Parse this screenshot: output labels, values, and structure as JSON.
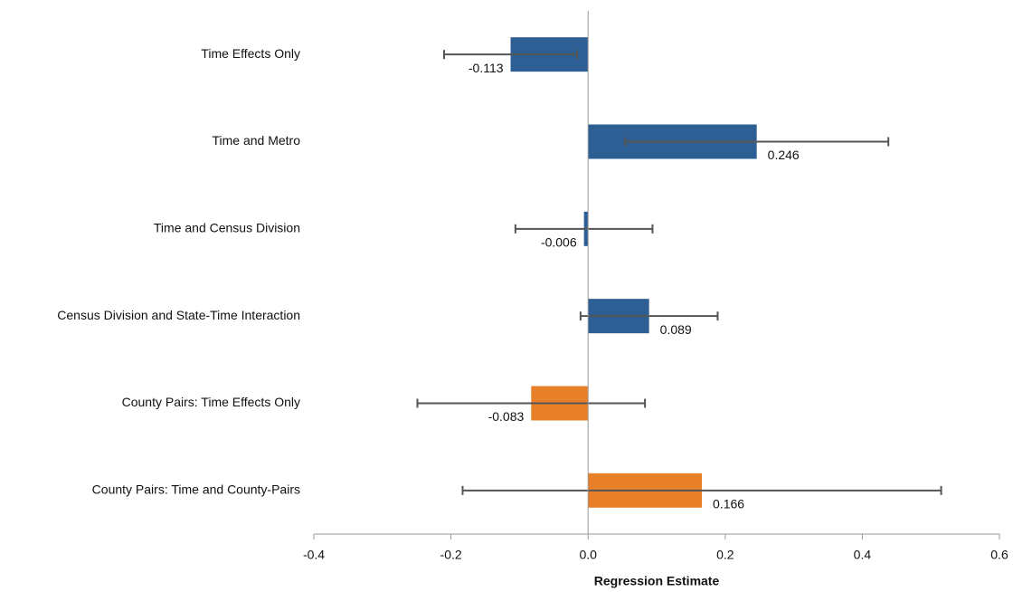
{
  "chart_data": {
    "type": "hbar",
    "x_label": "Regression Estimate",
    "categories": [
      "Time Effects Only",
      "Time and Metro",
      "Time and Census Division",
      "Census Division and State-Time Interaction",
      "County Pairs: Time Effects Only",
      "County Pairs: Time and County-Pairs"
    ],
    "values": [
      -0.113,
      0.246,
      -0.006,
      0.089,
      -0.083,
      0.166
    ],
    "errors": [
      0.097,
      0.192,
      0.1,
      0.1,
      0.166,
      0.349
    ],
    "colors": [
      "#2e5f94",
      "#2e5f94",
      "#2e5f94",
      "#2e5f94",
      "#e8802a",
      "#e8802a"
    ],
    "xlim": [
      -0.4,
      0.6
    ],
    "xticks": [
      -0.4,
      -0.2,
      {
        "value": 0,
        "label": "0.0"
      },
      0.2,
      0.4,
      0.6
    ]
  }
}
